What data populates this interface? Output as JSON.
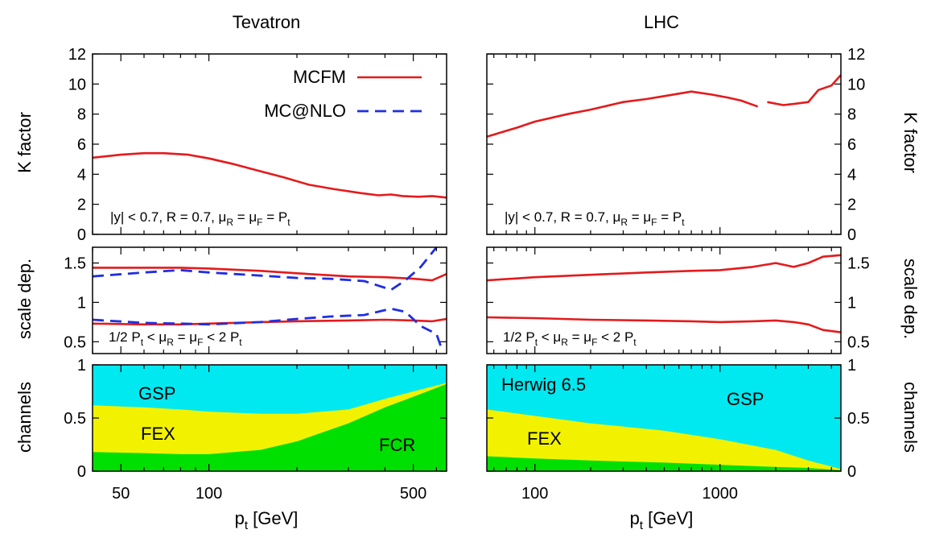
{
  "colors": {
    "mcfm": "#e41a1c",
    "mcnlo": "#1f2fe0",
    "gsp": "#00e8f0",
    "fex": "#f2f200",
    "fcr": "#00e000"
  },
  "chart_data": [
    {
      "name": "Tevatron",
      "type": "line",
      "title": "Tevatron",
      "xlabel": "p",
      "xlabel_sub": "t",
      "xlabel_unit": " [GeV]",
      "xscale": "log",
      "xlim": [
        40,
        650
      ],
      "xticks": [
        50,
        100,
        500
      ],
      "kfactor": {
        "ylabel": "K factor",
        "ylim": [
          0,
          12
        ],
        "yticks": [
          0,
          2,
          4,
          6,
          8,
          10,
          12
        ],
        "annotation": "|y| < 0.7,  R = 0.7, μR = μF = Pt",
        "series": [
          {
            "name": "MCFM",
            "points": [
              [
                40,
                5.1
              ],
              [
                50,
                5.3
              ],
              [
                60,
                5.4
              ],
              [
                70,
                5.4
              ],
              [
                85,
                5.3
              ],
              [
                100,
                5.05
              ],
              [
                120,
                4.7
              ],
              [
                150,
                4.2
              ],
              [
                180,
                3.8
              ],
              [
                220,
                3.3
              ],
              [
                270,
                3.0
              ],
              [
                330,
                2.75
              ],
              [
                380,
                2.6
              ],
              [
                420,
                2.65
              ],
              [
                460,
                2.55
              ],
              [
                520,
                2.5
              ],
              [
                580,
                2.55
              ],
              [
                650,
                2.45
              ]
            ]
          }
        ]
      },
      "scale": {
        "ylabel": "scale dep.",
        "ylim": [
          0.35,
          1.7
        ],
        "yticks": [
          0.5,
          1,
          1.5
        ],
        "annotation": "1/2 Pt < μR = μF < 2 Pt",
        "series": [
          {
            "name": "MCFM upper",
            "points": [
              [
                40,
                1.44
              ],
              [
                60,
                1.44
              ],
              [
                80,
                1.44
              ],
              [
                100,
                1.43
              ],
              [
                150,
                1.4
              ],
              [
                200,
                1.37
              ],
              [
                300,
                1.33
              ],
              [
                400,
                1.32
              ],
              [
                500,
                1.3
              ],
              [
                580,
                1.28
              ],
              [
                650,
                1.36
              ]
            ]
          },
          {
            "name": "MCFM lower",
            "points": [
              [
                40,
                0.73
              ],
              [
                60,
                0.72
              ],
              [
                80,
                0.72
              ],
              [
                100,
                0.73
              ],
              [
                150,
                0.75
              ],
              [
                200,
                0.76
              ],
              [
                300,
                0.77
              ],
              [
                400,
                0.78
              ],
              [
                500,
                0.77
              ],
              [
                580,
                0.76
              ],
              [
                650,
                0.79
              ]
            ]
          },
          {
            "name": "MC@NLO upper",
            "points": [
              [
                40,
                1.33
              ],
              [
                60,
                1.38
              ],
              [
                80,
                1.41
              ],
              [
                100,
                1.38
              ],
              [
                150,
                1.34
              ],
              [
                200,
                1.31
              ],
              [
                260,
                1.3
              ],
              [
                340,
                1.27
              ],
              [
                420,
                1.16
              ],
              [
                470,
                1.28
              ],
              [
                530,
                1.45
              ],
              [
                600,
                1.7
              ]
            ]
          },
          {
            "name": "MC@NLO lower",
            "points": [
              [
                40,
                0.78
              ],
              [
                60,
                0.74
              ],
              [
                80,
                0.73
              ],
              [
                100,
                0.72
              ],
              [
                150,
                0.75
              ],
              [
                200,
                0.79
              ],
              [
                260,
                0.82
              ],
              [
                340,
                0.84
              ],
              [
                420,
                0.92
              ],
              [
                470,
                0.88
              ],
              [
                530,
                0.7
              ],
              [
                600,
                0.6
              ],
              [
                620,
                0.45
              ]
            ]
          }
        ]
      },
      "channels": {
        "ylabel": "channels",
        "ylim": [
          0,
          1
        ],
        "yticks": [
          0,
          0.5,
          1
        ],
        "fcr": [
          [
            40,
            0.18
          ],
          [
            60,
            0.17
          ],
          [
            80,
            0.16
          ],
          [
            100,
            0.16
          ],
          [
            150,
            0.2
          ],
          [
            200,
            0.28
          ],
          [
            300,
            0.45
          ],
          [
            400,
            0.6
          ],
          [
            500,
            0.7
          ],
          [
            650,
            0.82
          ]
        ],
        "fcr_fex": [
          [
            40,
            0.62
          ],
          [
            60,
            0.6
          ],
          [
            80,
            0.58
          ],
          [
            100,
            0.56
          ],
          [
            150,
            0.54
          ],
          [
            200,
            0.54
          ],
          [
            300,
            0.58
          ],
          [
            400,
            0.68
          ],
          [
            500,
            0.75
          ],
          [
            650,
            0.83
          ]
        ],
        "labels": {
          "gsp": "GSP",
          "fex": "FEX",
          "fcr": "FCR"
        }
      },
      "legend": [
        {
          "label": "MCFM",
          "style": "solid"
        },
        {
          "label": "MC@NLO",
          "style": "dashed"
        }
      ]
    },
    {
      "name": "LHC",
      "type": "line",
      "title": "LHC",
      "xlabel": "p",
      "xlabel_sub": "t",
      "xlabel_unit": " [GeV]",
      "xscale": "log",
      "xlim": [
        55,
        4500
      ],
      "xticks": [
        100,
        1000
      ],
      "kfactor": {
        "ylabel": "K factor",
        "ylim": [
          0,
          12
        ],
        "yticks": [
          0,
          2,
          4,
          6,
          8,
          10,
          12
        ],
        "annotation": "|y| < 0.7,  R = 0.7, μR = μF = Pt",
        "series": [
          {
            "name": "MCFM",
            "points": [
              [
                55,
                6.5
              ],
              [
                80,
                7.1
              ],
              [
                100,
                7.5
              ],
              [
                150,
                8.0
              ],
              [
                200,
                8.3
              ],
              [
                300,
                8.8
              ],
              [
                400,
                9.0
              ],
              [
                500,
                9.2
              ],
              [
                700,
                9.5
              ],
              [
                900,
                9.3
              ],
              [
                1100,
                9.1
              ],
              [
                1300,
                8.9
              ],
              [
                1600,
                8.5
              ]
            ]
          },
          {
            "name": "MCFM (high pt)",
            "points": [
              [
                1800,
                8.8
              ],
              [
                2200,
                8.6
              ],
              [
                2600,
                8.7
              ],
              [
                3000,
                8.8
              ],
              [
                3400,
                9.6
              ],
              [
                4000,
                9.9
              ],
              [
                4500,
                10.6
              ]
            ]
          }
        ]
      },
      "scale": {
        "ylabel": "scale dep.",
        "ylim": [
          0.35,
          1.7
        ],
        "yticks": [
          0.5,
          1,
          1.5
        ],
        "annotation": "1/2 Pt < μR = μF < 2 Pt",
        "series": [
          {
            "name": "MCFM upper",
            "points": [
              [
                55,
                1.28
              ],
              [
                100,
                1.32
              ],
              [
                200,
                1.35
              ],
              [
                400,
                1.38
              ],
              [
                700,
                1.4
              ],
              [
                1000,
                1.41
              ],
              [
                1500,
                1.45
              ],
              [
                2000,
                1.5
              ],
              [
                2500,
                1.45
              ],
              [
                3000,
                1.5
              ],
              [
                3600,
                1.58
              ],
              [
                4500,
                1.6
              ]
            ]
          },
          {
            "name": "MCFM lower",
            "points": [
              [
                55,
                0.81
              ],
              [
                100,
                0.8
              ],
              [
                200,
                0.78
              ],
              [
                400,
                0.77
              ],
              [
                700,
                0.76
              ],
              [
                1000,
                0.75
              ],
              [
                1500,
                0.76
              ],
              [
                2000,
                0.77
              ],
              [
                2500,
                0.75
              ],
              [
                3000,
                0.72
              ],
              [
                3600,
                0.65
              ],
              [
                4500,
                0.62
              ]
            ]
          }
        ]
      },
      "channels": {
        "ylabel": "channels",
        "ylim": [
          0,
          1
        ],
        "yticks": [
          0,
          0.5,
          1
        ],
        "fcr": [
          [
            55,
            0.14
          ],
          [
            100,
            0.12
          ],
          [
            200,
            0.1
          ],
          [
            500,
            0.08
          ],
          [
            1000,
            0.06
          ],
          [
            2000,
            0.04
          ],
          [
            3000,
            0.03
          ],
          [
            4500,
            0.01
          ]
        ],
        "fcr_fex": [
          [
            55,
            0.58
          ],
          [
            100,
            0.52
          ],
          [
            200,
            0.45
          ],
          [
            500,
            0.38
          ],
          [
            1000,
            0.3
          ],
          [
            2000,
            0.2
          ],
          [
            3000,
            0.1
          ],
          [
            4500,
            0.02
          ]
        ],
        "labels": {
          "gsp": "GSP",
          "fex": "FEX",
          "note": "Herwig 6.5"
        }
      }
    }
  ]
}
